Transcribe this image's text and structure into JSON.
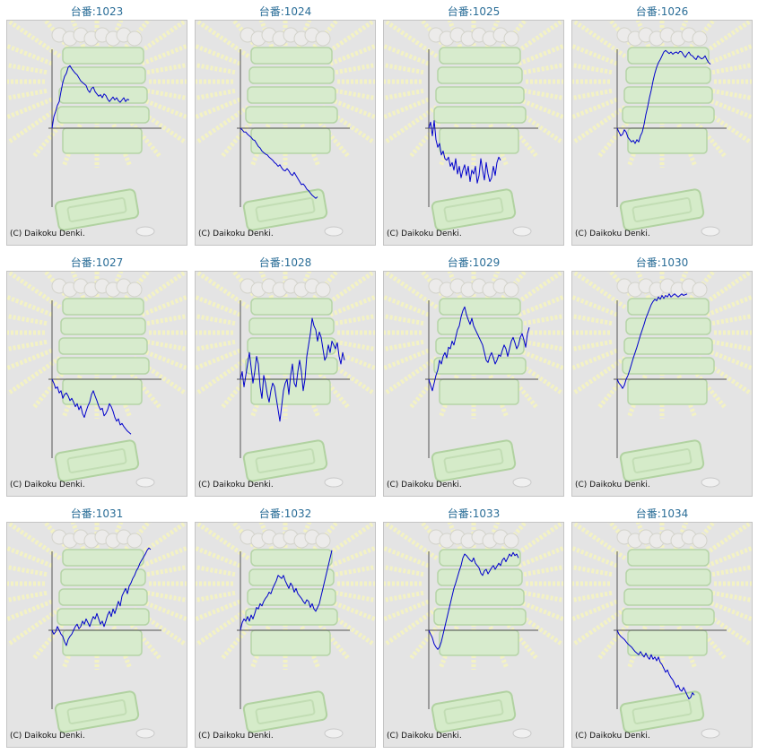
{
  "copyright": "(C) Daikoku Denki.",
  "colors": {
    "title": "#2a6d97",
    "line": "#0000cc",
    "axis": "#555555",
    "panel_bg": "#e4e4e4"
  },
  "chart_data": [
    {
      "type": "line",
      "title": "台番:1023",
      "x": [
        0,
        2,
        4,
        6,
        8,
        10,
        12,
        14,
        16,
        18,
        20,
        22,
        24,
        26,
        28,
        30,
        32,
        34,
        36,
        38,
        40,
        42,
        44,
        46,
        48,
        50,
        52,
        54,
        56,
        58,
        60,
        62,
        64,
        66,
        68,
        70,
        72,
        74,
        76,
        78,
        80,
        82,
        84,
        86
      ],
      "y": [
        0,
        0.15,
        0.22,
        0.3,
        0.35,
        0.48,
        0.6,
        0.68,
        0.72,
        0.8,
        0.82,
        0.78,
        0.75,
        0.72,
        0.7,
        0.66,
        0.62,
        0.6,
        0.58,
        0.56,
        0.5,
        0.47,
        0.52,
        0.54,
        0.48,
        0.45,
        0.42,
        0.44,
        0.4,
        0.45,
        0.43,
        0.38,
        0.35,
        0.38,
        0.41,
        0.37,
        0.4,
        0.36,
        0.34,
        0.37,
        0.4,
        0.35,
        0.38,
        0.37
      ]
    },
    {
      "type": "line",
      "title": "台番:1024",
      "x": [
        0,
        2,
        4,
        6,
        8,
        10,
        12,
        14,
        16,
        18,
        20,
        22,
        24,
        26,
        28,
        30,
        32,
        34,
        36,
        38,
        40,
        42,
        44,
        46,
        48,
        50,
        52,
        54,
        56,
        58,
        60,
        62,
        64,
        66,
        68,
        70,
        72,
        74,
        76,
        78,
        80,
        82,
        84,
        86
      ],
      "y": [
        0,
        -0.02,
        -0.05,
        -0.05,
        -0.08,
        -0.1,
        -0.12,
        -0.15,
        -0.16,
        -0.2,
        -0.24,
        -0.26,
        -0.3,
        -0.32,
        -0.34,
        -0.35,
        -0.38,
        -0.4,
        -0.42,
        -0.45,
        -0.47,
        -0.5,
        -0.48,
        -0.52,
        -0.55,
        -0.56,
        -0.53,
        -0.56,
        -0.6,
        -0.62,
        -0.58,
        -0.62,
        -0.66,
        -0.7,
        -0.74,
        -0.73,
        -0.76,
        -0.8,
        -0.82,
        -0.85,
        -0.88,
        -0.9,
        -0.92,
        -0.9
      ]
    },
    {
      "type": "line",
      "title": "台番:1025",
      "x": [
        0,
        2,
        4,
        6,
        8,
        10,
        12,
        14,
        16,
        18,
        20,
        22,
        24,
        26,
        28,
        30,
        32,
        34,
        36,
        38,
        40,
        42,
        44,
        46,
        48,
        50,
        52,
        54,
        56,
        58,
        60,
        62,
        64,
        66,
        68,
        70,
        72,
        74,
        76,
        78,
        80
      ],
      "y": [
        0,
        0.08,
        -0.1,
        0.1,
        -0.15,
        -0.25,
        -0.2,
        -0.35,
        -0.3,
        -0.4,
        -0.42,
        -0.38,
        -0.5,
        -0.45,
        -0.55,
        -0.4,
        -0.6,
        -0.5,
        -0.65,
        -0.55,
        -0.48,
        -0.62,
        -0.5,
        -0.7,
        -0.55,
        -0.6,
        -0.5,
        -0.72,
        -0.62,
        -0.4,
        -0.55,
        -0.68,
        -0.45,
        -0.6,
        -0.7,
        -0.65,
        -0.5,
        -0.62,
        -0.45,
        -0.38,
        -0.42
      ]
    },
    {
      "type": "line",
      "title": "台番:1026",
      "x": [
        0,
        2,
        4,
        6,
        8,
        10,
        12,
        14,
        16,
        18,
        20,
        22,
        24,
        26,
        28,
        30,
        32,
        34,
        36,
        38,
        40,
        42,
        44,
        46,
        48,
        50,
        52,
        54,
        56,
        58,
        60,
        62,
        64,
        66,
        68,
        70,
        72,
        74,
        76,
        78,
        80,
        82,
        84,
        86,
        88,
        90,
        92,
        94,
        96,
        98,
        100,
        102,
        104
      ],
      "y": [
        0,
        -0.05,
        -0.1,
        -0.08,
        -0.02,
        -0.05,
        -0.12,
        -0.15,
        -0.18,
        -0.16,
        -0.2,
        -0.15,
        -0.18,
        -0.1,
        -0.05,
        0.05,
        0.18,
        0.28,
        0.4,
        0.5,
        0.62,
        0.72,
        0.8,
        0.86,
        0.9,
        0.95,
        1.0,
        1.02,
        1.0,
        0.98,
        1.0,
        0.97,
        0.99,
        1.0,
        0.98,
        1.01,
        1.0,
        0.96,
        0.93,
        0.97,
        1.0,
        0.96,
        0.95,
        0.92,
        0.9,
        0.95,
        0.93,
        0.91,
        0.92,
        0.95,
        0.9,
        0.86,
        0.84
      ]
    },
    {
      "type": "line",
      "title": "台番:1027",
      "x": [
        0,
        2,
        4,
        6,
        8,
        10,
        12,
        14,
        16,
        18,
        20,
        22,
        24,
        26,
        28,
        30,
        32,
        34,
        36,
        38,
        40,
        42,
        44,
        46,
        48,
        50,
        52,
        54,
        56,
        58,
        60,
        62,
        64,
        66,
        68,
        70,
        72,
        74,
        76,
        78,
        80,
        82,
        84,
        86,
        88
      ],
      "y": [
        0,
        -0.05,
        -0.12,
        -0.1,
        -0.18,
        -0.15,
        -0.25,
        -0.2,
        -0.18,
        -0.22,
        -0.28,
        -0.25,
        -0.3,
        -0.36,
        -0.32,
        -0.4,
        -0.35,
        -0.45,
        -0.5,
        -0.42,
        -0.35,
        -0.3,
        -0.2,
        -0.15,
        -0.22,
        -0.28,
        -0.35,
        -0.4,
        -0.38,
        -0.48,
        -0.45,
        -0.4,
        -0.32,
        -0.36,
        -0.42,
        -0.5,
        -0.55,
        -0.52,
        -0.6,
        -0.58,
        -0.62,
        -0.65,
        -0.68,
        -0.7,
        -0.72
      ]
    },
    {
      "type": "line",
      "title": "台番:1028",
      "x": [
        0,
        2,
        4,
        6,
        8,
        10,
        12,
        14,
        16,
        18,
        20,
        22,
        24,
        26,
        28,
        30,
        32,
        34,
        36,
        38,
        40,
        42,
        44,
        46,
        48,
        50,
        52,
        54,
        56,
        58,
        60,
        62,
        64,
        66,
        68,
        70,
        72,
        74,
        76,
        78,
        80,
        82,
        84,
        86,
        88,
        90,
        92,
        94,
        96,
        98,
        100,
        102,
        104,
        106,
        108,
        110,
        112,
        114,
        116
      ],
      "y": [
        0,
        0.1,
        -0.1,
        0.05,
        0.2,
        0.35,
        0.15,
        -0.05,
        0.1,
        0.3,
        0.2,
        -0.1,
        -0.25,
        0.05,
        -0.05,
        -0.2,
        -0.3,
        -0.15,
        -0.05,
        -0.1,
        -0.25,
        -0.4,
        -0.55,
        -0.35,
        -0.15,
        -0.05,
        0.0,
        -0.2,
        0.05,
        0.2,
        -0.05,
        -0.1,
        0.1,
        0.25,
        0.1,
        -0.15,
        0.0,
        0.3,
        0.45,
        0.6,
        0.8,
        0.7,
        0.65,
        0.5,
        0.62,
        0.55,
        0.4,
        0.25,
        0.3,
        0.45,
        0.35,
        0.5,
        0.45,
        0.4,
        0.48,
        0.3,
        0.2,
        0.35,
        0.25
      ]
    },
    {
      "type": "line",
      "title": "台番:1029",
      "x": [
        0,
        2,
        4,
        6,
        8,
        10,
        12,
        14,
        16,
        18,
        20,
        22,
        24,
        26,
        28,
        30,
        32,
        34,
        36,
        38,
        40,
        42,
        44,
        46,
        48,
        50,
        52,
        54,
        56,
        58,
        60,
        62,
        64,
        66,
        68,
        70,
        72,
        74,
        76,
        78,
        80,
        82,
        84,
        86,
        88,
        90,
        92,
        94,
        96,
        98,
        100,
        102,
        104,
        106,
        108,
        110,
        112
      ],
      "y": [
        0,
        -0.08,
        -0.15,
        -0.05,
        0.05,
        0.12,
        0.25,
        0.2,
        0.3,
        0.35,
        0.28,
        0.42,
        0.4,
        0.5,
        0.45,
        0.55,
        0.65,
        0.7,
        0.82,
        0.9,
        0.95,
        0.85,
        0.78,
        0.72,
        0.8,
        0.7,
        0.65,
        0.6,
        0.55,
        0.5,
        0.45,
        0.35,
        0.25,
        0.22,
        0.3,
        0.35,
        0.28,
        0.2,
        0.25,
        0.32,
        0.3,
        0.38,
        0.45,
        0.4,
        0.3,
        0.4,
        0.5,
        0.55,
        0.48,
        0.4,
        0.45,
        0.55,
        0.6,
        0.52,
        0.42,
        0.6,
        0.68
      ]
    },
    {
      "type": "line",
      "title": "台番:1030",
      "x": [
        0,
        2,
        4,
        6,
        8,
        10,
        12,
        14,
        16,
        18,
        20,
        22,
        24,
        26,
        28,
        30,
        32,
        34,
        36,
        38,
        40,
        42,
        44,
        46,
        48,
        50,
        52,
        54,
        56,
        58,
        60,
        62,
        64,
        66,
        68,
        70,
        72,
        74,
        76,
        78
      ],
      "y": [
        0,
        -0.05,
        -0.08,
        -0.12,
        -0.08,
        0.0,
        0.05,
        0.12,
        0.2,
        0.28,
        0.35,
        0.42,
        0.5,
        0.58,
        0.65,
        0.72,
        0.8,
        0.86,
        0.92,
        0.98,
        1.02,
        1.05,
        1.03,
        1.08,
        1.05,
        1.1,
        1.06,
        1.1,
        1.08,
        1.12,
        1.08,
        1.1,
        1.12,
        1.1,
        1.08,
        1.1,
        1.12,
        1.1,
        1.11,
        1.12
      ]
    },
    {
      "type": "line",
      "title": "台番:1031",
      "x": [
        0,
        2,
        4,
        6,
        8,
        10,
        12,
        14,
        16,
        18,
        20,
        22,
        24,
        26,
        28,
        30,
        32,
        34,
        36,
        38,
        40,
        42,
        44,
        46,
        48,
        50,
        52,
        54,
        56,
        58,
        60,
        62,
        64,
        66,
        68,
        70,
        72,
        74,
        76,
        78,
        80,
        82,
        84,
        86,
        88,
        90,
        92,
        94,
        96,
        98,
        100,
        102,
        104,
        106,
        108,
        110
      ],
      "y": [
        0,
        -0.05,
        -0.02,
        0.05,
        0.0,
        -0.05,
        -0.08,
        -0.15,
        -0.2,
        -0.12,
        -0.08,
        -0.05,
        0.0,
        0.05,
        0.08,
        0.02,
        0.05,
        0.12,
        0.08,
        0.15,
        0.1,
        0.05,
        0.12,
        0.18,
        0.15,
        0.22,
        0.15,
        0.08,
        0.12,
        0.05,
        0.12,
        0.2,
        0.25,
        0.18,
        0.28,
        0.22,
        0.3,
        0.38,
        0.32,
        0.45,
        0.5,
        0.55,
        0.48,
        0.58,
        0.62,
        0.68,
        0.72,
        0.78,
        0.82,
        0.88,
        0.92,
        0.96,
        1.0,
        1.05,
        1.08,
        1.06
      ]
    },
    {
      "type": "line",
      "title": "台番:1032",
      "x": [
        0,
        2,
        4,
        6,
        8,
        10,
        12,
        14,
        16,
        18,
        20,
        22,
        24,
        26,
        28,
        30,
        32,
        34,
        36,
        38,
        40,
        42,
        44,
        46,
        48,
        50,
        52,
        54,
        56,
        58,
        60,
        62,
        64,
        66,
        68,
        70,
        72,
        74,
        76,
        78,
        80,
        82,
        84,
        86,
        88,
        90,
        92,
        94,
        96,
        98,
        100,
        102
      ],
      "y": [
        0,
        0.1,
        0.15,
        0.12,
        0.18,
        0.12,
        0.2,
        0.15,
        0.22,
        0.3,
        0.28,
        0.35,
        0.32,
        0.38,
        0.42,
        0.45,
        0.5,
        0.48,
        0.55,
        0.6,
        0.65,
        0.72,
        0.7,
        0.68,
        0.72,
        0.65,
        0.6,
        0.55,
        0.62,
        0.58,
        0.5,
        0.55,
        0.48,
        0.45,
        0.42,
        0.38,
        0.35,
        0.4,
        0.38,
        0.3,
        0.35,
        0.28,
        0.25,
        0.3,
        0.35,
        0.45,
        0.55,
        0.65,
        0.75,
        0.85,
        0.95,
        1.05
      ]
    },
    {
      "type": "line",
      "title": "台番:1033",
      "x": [
        0,
        2,
        4,
        6,
        8,
        10,
        12,
        14,
        16,
        18,
        20,
        22,
        24,
        26,
        28,
        30,
        32,
        34,
        36,
        38,
        40,
        42,
        44,
        46,
        48,
        50,
        52,
        54,
        56,
        58,
        60,
        62,
        64,
        66,
        68,
        70,
        72,
        74,
        76,
        78,
        80,
        82,
        84,
        86,
        88,
        90,
        92,
        94,
        96,
        98,
        100
      ],
      "y": [
        0,
        -0.05,
        -0.1,
        -0.18,
        -0.22,
        -0.25,
        -0.22,
        -0.15,
        -0.05,
        0.05,
        0.15,
        0.25,
        0.35,
        0.45,
        0.55,
        0.62,
        0.7,
        0.78,
        0.85,
        0.95,
        1.0,
        0.98,
        0.95,
        0.92,
        0.9,
        0.95,
        0.88,
        0.85,
        0.82,
        0.75,
        0.72,
        0.78,
        0.8,
        0.74,
        0.78,
        0.82,
        0.85,
        0.8,
        0.84,
        0.88,
        0.85,
        0.92,
        0.95,
        0.9,
        0.95,
        1.0,
        0.97,
        1.02,
        0.98,
        1.0,
        0.95
      ]
    },
    {
      "type": "line",
      "title": "台番:1034",
      "x": [
        0,
        2,
        4,
        6,
        8,
        10,
        12,
        14,
        16,
        18,
        20,
        22,
        24,
        26,
        28,
        30,
        32,
        34,
        36,
        38,
        40,
        42,
        44,
        46,
        48,
        50,
        52,
        54,
        56,
        58,
        60,
        62,
        64,
        66,
        68,
        70,
        72,
        74,
        76,
        78,
        80,
        82,
        84,
        86
      ],
      "y": [
        0,
        -0.05,
        -0.08,
        -0.1,
        -0.12,
        -0.15,
        -0.18,
        -0.2,
        -0.22,
        -0.25,
        -0.28,
        -0.3,
        -0.32,
        -0.28,
        -0.32,
        -0.35,
        -0.3,
        -0.35,
        -0.38,
        -0.32,
        -0.38,
        -0.35,
        -0.4,
        -0.35,
        -0.42,
        -0.45,
        -0.5,
        -0.55,
        -0.52,
        -0.58,
        -0.62,
        -0.65,
        -0.7,
        -0.75,
        -0.72,
        -0.78,
        -0.8,
        -0.75,
        -0.8,
        -0.85,
        -0.9,
        -0.88,
        -0.82,
        -0.85
      ]
    }
  ]
}
